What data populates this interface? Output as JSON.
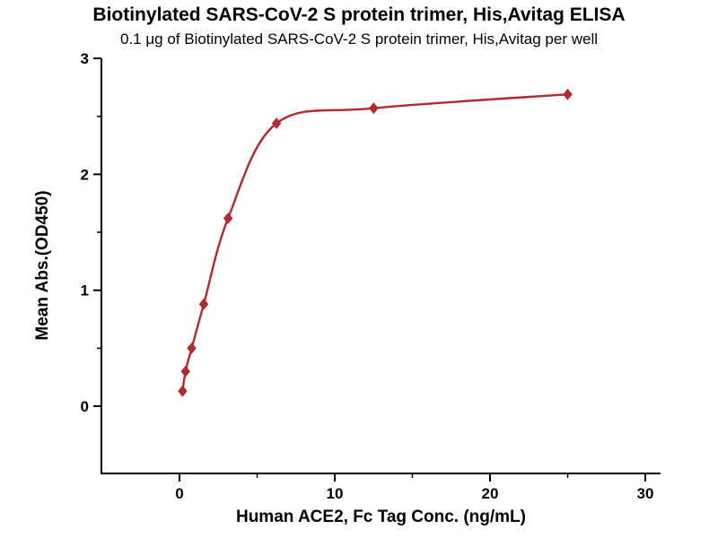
{
  "chart_data": {
    "type": "scatter",
    "title": "Biotinylated SARS-CoV-2 S protein trimer, His,Avitag ELISA",
    "subtitle": "0.1 μg of Biotinylated SARS-CoV-2 S protein trimer, His,Avitag per well",
    "xlabel": "Human ACE2, Fc Tag Conc. (ng/mL)",
    "ylabel": "Mean Abs.(OD450)",
    "x": [
      0.195,
      0.39,
      0.78,
      1.56,
      3.13,
      6.25,
      12.5,
      25
    ],
    "y": [
      0.13,
      0.3,
      0.5,
      0.88,
      1.62,
      2.44,
      2.57,
      2.69
    ],
    "xticks": [
      0,
      10,
      20,
      30
    ],
    "yticks": [
      0,
      1,
      2,
      3
    ],
    "xticks_minor": [
      5,
      15,
      25
    ],
    "yticks_minor": [
      0.5,
      1.5,
      2.5
    ],
    "xlim": [
      -5,
      31
    ],
    "ylim": [
      -0.58,
      3
    ],
    "line_color": "#B02A2F",
    "marker_color": "#B02A2F",
    "marker": "diamond",
    "axis_color": "#000000",
    "grid": "off",
    "legend": "none"
  }
}
